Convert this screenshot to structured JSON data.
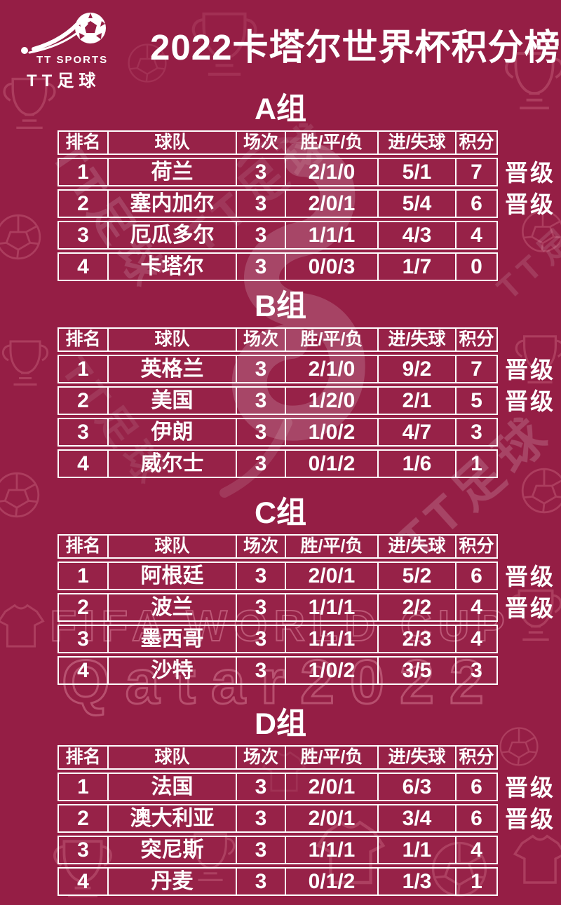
{
  "page_title": "2022卡塔尔世界杯积分榜",
  "logo": {
    "icon": "soccer-ball-swoosh-icon",
    "line1": "TT SPORTS",
    "line2": "TT足球"
  },
  "columns": [
    "排名",
    "球队",
    "场次",
    "胜/平/负",
    "进/失球",
    "积分"
  ],
  "qualified_label": "晋级",
  "colors": {
    "background": "#951e45",
    "table_border": "#ffffff",
    "text": "#ffffff",
    "pattern_outline": "#c25c79",
    "watermark_outline": "#eea0b4"
  },
  "watermarks": {
    "fifa_text": "FIFA WORLD CUP",
    "year_text": "Qatar2022",
    "tt_text": "TT足球"
  },
  "chart_data": [
    {
      "type": "table",
      "title": "A组",
      "columns": [
        "排名",
        "球队",
        "场次",
        "胜/平/负",
        "进/失球",
        "积分"
      ],
      "rows": [
        [
          "1",
          "荷兰",
          "3",
          "2/1/0",
          "5/1",
          "7",
          "晋级"
        ],
        [
          "2",
          "塞内加尔",
          "3",
          "2/0/1",
          "5/4",
          "6",
          "晋级"
        ],
        [
          "3",
          "厄瓜多尔",
          "3",
          "1/1/1",
          "4/3",
          "4",
          ""
        ],
        [
          "4",
          "卡塔尔",
          "3",
          "0/0/3",
          "1/7",
          "0",
          ""
        ]
      ]
    },
    {
      "type": "table",
      "title": "B组",
      "columns": [
        "排名",
        "球队",
        "场次",
        "胜/平/负",
        "进/失球",
        "积分"
      ],
      "rows": [
        [
          "1",
          "英格兰",
          "3",
          "2/1/0",
          "9/2",
          "7",
          "晋级"
        ],
        [
          "2",
          "美国",
          "3",
          "1/2/0",
          "2/1",
          "5",
          "晋级"
        ],
        [
          "3",
          "伊朗",
          "3",
          "1/0/2",
          "4/7",
          "3",
          ""
        ],
        [
          "4",
          "威尔士",
          "3",
          "0/1/2",
          "1/6",
          "1",
          ""
        ]
      ]
    },
    {
      "type": "table",
      "title": "C组",
      "columns": [
        "排名",
        "球队",
        "场次",
        "胜/平/负",
        "进/失球",
        "积分"
      ],
      "rows": [
        [
          "1",
          "阿根廷",
          "3",
          "2/0/1",
          "5/2",
          "6",
          "晋级"
        ],
        [
          "2",
          "波兰",
          "3",
          "1/1/1",
          "2/2",
          "4",
          "晋级"
        ],
        [
          "3",
          "墨西哥",
          "3",
          "1/1/1",
          "2/3",
          "4",
          ""
        ],
        [
          "4",
          "沙特",
          "3",
          "1/0/2",
          "3/5",
          "3",
          ""
        ]
      ]
    },
    {
      "type": "table",
      "title": "D组",
      "columns": [
        "排名",
        "球队",
        "场次",
        "胜/平/负",
        "进/失球",
        "积分"
      ],
      "rows": [
        [
          "1",
          "法国",
          "3",
          "2/0/1",
          "6/3",
          "6",
          "晋级"
        ],
        [
          "2",
          "澳大利亚",
          "3",
          "2/0/1",
          "3/4",
          "6",
          "晋级"
        ],
        [
          "3",
          "突尼斯",
          "3",
          "1/1/1",
          "1/1",
          "4",
          ""
        ],
        [
          "4",
          "丹麦",
          "3",
          "0/1/2",
          "1/3",
          "1",
          ""
        ]
      ]
    }
  ]
}
